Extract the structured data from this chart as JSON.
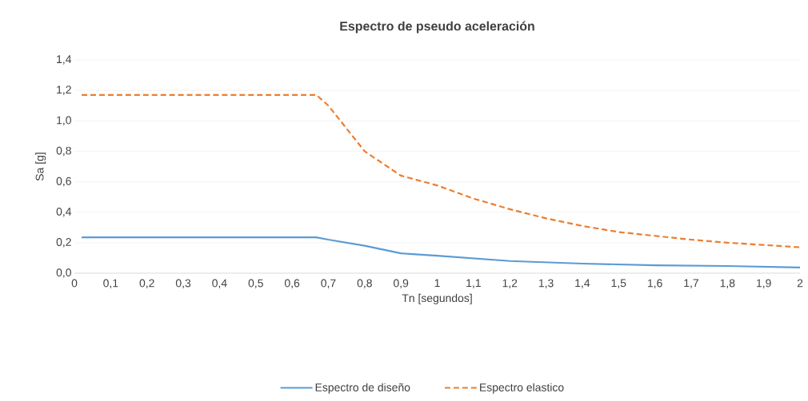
{
  "chart_data": {
    "type": "line",
    "title": "Espectro de pseudo aceleración",
    "xlabel": "Tn [segundos]",
    "ylabel": "Sa [g]",
    "series": [
      {
        "name": "Espectro de diseño",
        "color": "#5b9bd5",
        "line_style": "solid",
        "x": [
          0.02,
          0.3,
          0.667,
          0.7,
          0.8,
          0.9,
          1.0,
          1.2,
          1.4,
          1.6,
          1.8,
          2.0
        ],
        "values": [
          0.235,
          0.235,
          0.235,
          0.22,
          0.18,
          0.13,
          0.115,
          0.08,
          0.063,
          0.052,
          0.047,
          0.037
        ]
      },
      {
        "name": "Espectro elastico",
        "color": "#ed7d31",
        "line_style": "dashed",
        "x": [
          0.02,
          0.667,
          0.7,
          0.8,
          0.9,
          1.0,
          1.1,
          1.2,
          1.3,
          1.4,
          1.5,
          1.6,
          1.7,
          1.8,
          1.9,
          2.0
        ],
        "values": [
          1.17,
          1.17,
          1.1,
          0.8,
          0.64,
          0.576,
          0.49,
          0.42,
          0.36,
          0.31,
          0.27,
          0.245,
          0.22,
          0.2,
          0.185,
          0.17
        ]
      }
    ],
    "xlim": [
      0,
      2
    ],
    "ylim": [
      0,
      1.4
    ],
    "xticks": [
      0,
      {
        "value": 0.1,
        "label": "0,1"
      },
      {
        "value": 0.2,
        "label": "0,2"
      },
      {
        "value": 0.3,
        "label": "0,3"
      },
      {
        "value": 0.4,
        "label": "0,4"
      },
      {
        "value": 0.5,
        "label": "0,5"
      },
      {
        "value": 0.6,
        "label": "0,6"
      },
      {
        "value": 0.7,
        "label": "0,7"
      },
      {
        "value": 0.8,
        "label": "0,8"
      },
      {
        "value": 0.9,
        "label": "0,9"
      },
      1,
      {
        "value": 1.1,
        "label": "1,1"
      },
      {
        "value": 1.2,
        "label": "1,2"
      },
      {
        "value": 1.3,
        "label": "1,3"
      },
      {
        "value": 1.4,
        "label": "1,4"
      },
      {
        "value": 1.5,
        "label": "1,5"
      },
      {
        "value": 1.6,
        "label": "1,6"
      },
      {
        "value": 1.7,
        "label": "1,7"
      },
      {
        "value": 1.8,
        "label": "1,8"
      },
      {
        "value": 1.9,
        "label": "1,9"
      },
      2
    ],
    "yticks": [
      {
        "value": 0,
        "label": "0,0"
      },
      {
        "value": 0.2,
        "label": "0,2"
      },
      {
        "value": 0.4,
        "label": "0,4"
      },
      {
        "value": 0.6,
        "label": "0,6"
      },
      {
        "value": 0.8,
        "label": "0,8"
      },
      {
        "value": 1.0,
        "label": "1,0"
      },
      {
        "value": 1.2,
        "label": "1,2"
      },
      {
        "value": 1.4,
        "label": "1,4"
      }
    ],
    "grid": "y",
    "legend": "bottom"
  }
}
